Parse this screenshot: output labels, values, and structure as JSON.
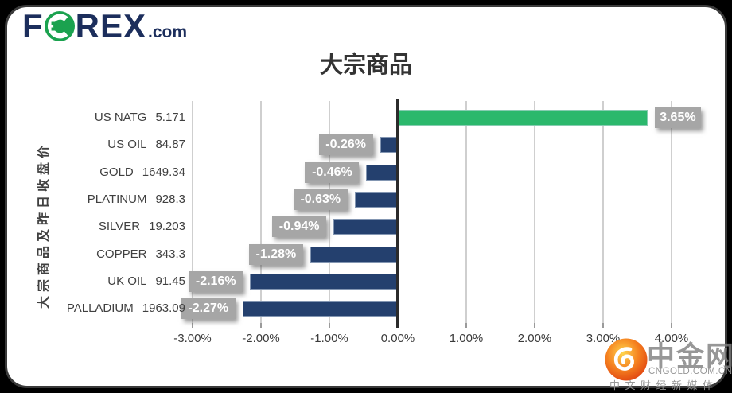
{
  "logo": {
    "f": "F",
    "rex": "REX",
    "suffix": ".com"
  },
  "chart_data": {
    "type": "bar",
    "orientation": "horizontal",
    "title": "大宗商品",
    "y_axis_title": "大宗商品及昨日收盘价",
    "categories": [
      "US NATG",
      "US OIL",
      "GOLD",
      "PLATINUM",
      "SILVER",
      "COPPER",
      "UK OIL",
      "PALLADIUM"
    ],
    "closing_prices": [
      "5.171",
      "84.87",
      "1649.34",
      "928.3",
      "19.203",
      "343.3",
      "91.45",
      "1963.09"
    ],
    "values_pct": [
      3.65,
      -0.26,
      -0.46,
      -0.63,
      -0.94,
      -1.28,
      -2.16,
      -2.27
    ],
    "data_labels": [
      "3.65%",
      "-0.26%",
      "-0.46%",
      "-0.63%",
      "-0.94%",
      "-1.28%",
      "-2.16%",
      "-2.27%"
    ],
    "x_tick_labels": [
      "-3.00%",
      "-2.00%",
      "-1.00%",
      "0.00%",
      "1.00%",
      "2.00%",
      "3.00%",
      "4.00%"
    ],
    "x_tick_values": [
      -3,
      -2,
      -1,
      0,
      1,
      2,
      3,
      4
    ],
    "xlim": [
      -3,
      4
    ],
    "grid": true,
    "legend": "none",
    "colors": {
      "positive_bar": "#2bb86c",
      "negative_bar": "#24406e",
      "data_label_bg": "#a6a6a6",
      "data_label_text": "#ffffff",
      "gridline": "#cfcfcf",
      "tick_mark": "#9a9a9a",
      "zero_axis": "#2b2b2b",
      "axis_text": "#3a3a3a"
    }
  },
  "watermark": {
    "brand": "中金网",
    "domain": "CNGOLD.COM.CN",
    "tagline": "中文财经新媒体"
  }
}
